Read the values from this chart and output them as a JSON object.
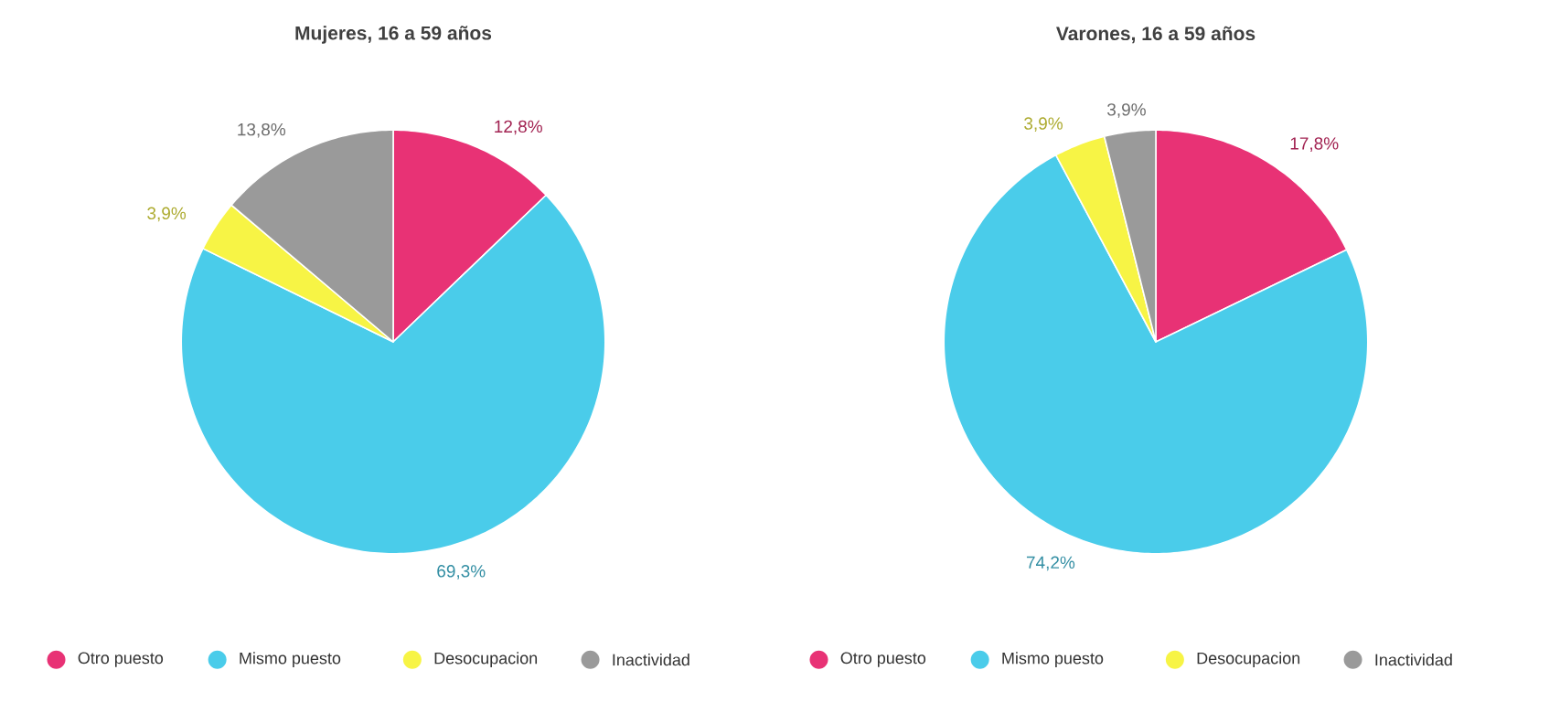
{
  "chart_data": [
    {
      "type": "pie",
      "title": "Mujeres, 16 a 59 años",
      "categories": [
        "Otro puesto",
        "Mismo puesto",
        "Desocupacion",
        "Inactividad"
      ],
      "values": [
        12.8,
        69.3,
        3.9,
        13.8
      ],
      "colors": [
        "#e83275",
        "#4accea",
        "#f7f445",
        "#9a9a9a"
      ],
      "value_labels": [
        "12,8%",
        "69,3%",
        "3,9%",
        "13,8%"
      ],
      "legend": "bottom"
    },
    {
      "type": "pie",
      "title": "Varones, 16 a 59 años",
      "categories": [
        "Otro puesto",
        "Mismo puesto",
        "Desocupacion",
        "Inactividad"
      ],
      "values": [
        17.8,
        74.2,
        3.9,
        3.9
      ],
      "colors": [
        "#e83275",
        "#4accea",
        "#f7f445",
        "#9a9a9a"
      ],
      "value_labels": [
        "17,8%",
        "74,2%",
        "3,9%",
        "3,9%"
      ],
      "legend": "bottom"
    }
  ]
}
